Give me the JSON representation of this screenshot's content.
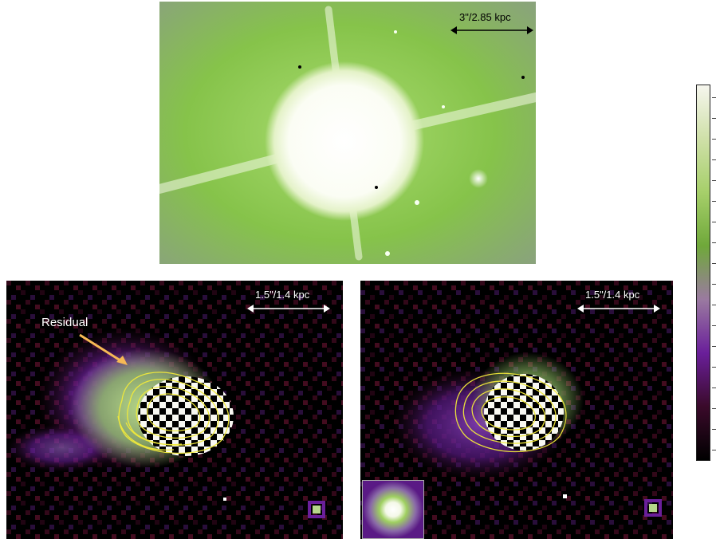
{
  "panels": {
    "top": {
      "scale_bar_label": "3\"/2.85 kpc"
    },
    "bottom_left": {
      "scale_bar_label": "1.5\"/1.4 kpc",
      "annotation": "Residual"
    },
    "bottom_right": {
      "scale_bar_label": "1.5\"/1.4 kpc"
    }
  },
  "colors": {
    "background_green": "#86c34a",
    "core_white": "#ffffff",
    "contour_yellow": "#f2ea3a",
    "arrow_orange": "#f7b955",
    "residual_purple": "#6a1f9a",
    "residual_maroon": "#6b1232"
  },
  "colorbar": {
    "gradient": [
      "#000000",
      "#3a0a2a",
      "#6a1f9a",
      "#9a7aa0",
      "#6fa83a",
      "#a6cf6a",
      "#cfe0a8",
      "#f6f6ee"
    ]
  },
  "icons": {
    "arrow": "arrow-icon",
    "scale_bar": "double-arrow-icon"
  }
}
